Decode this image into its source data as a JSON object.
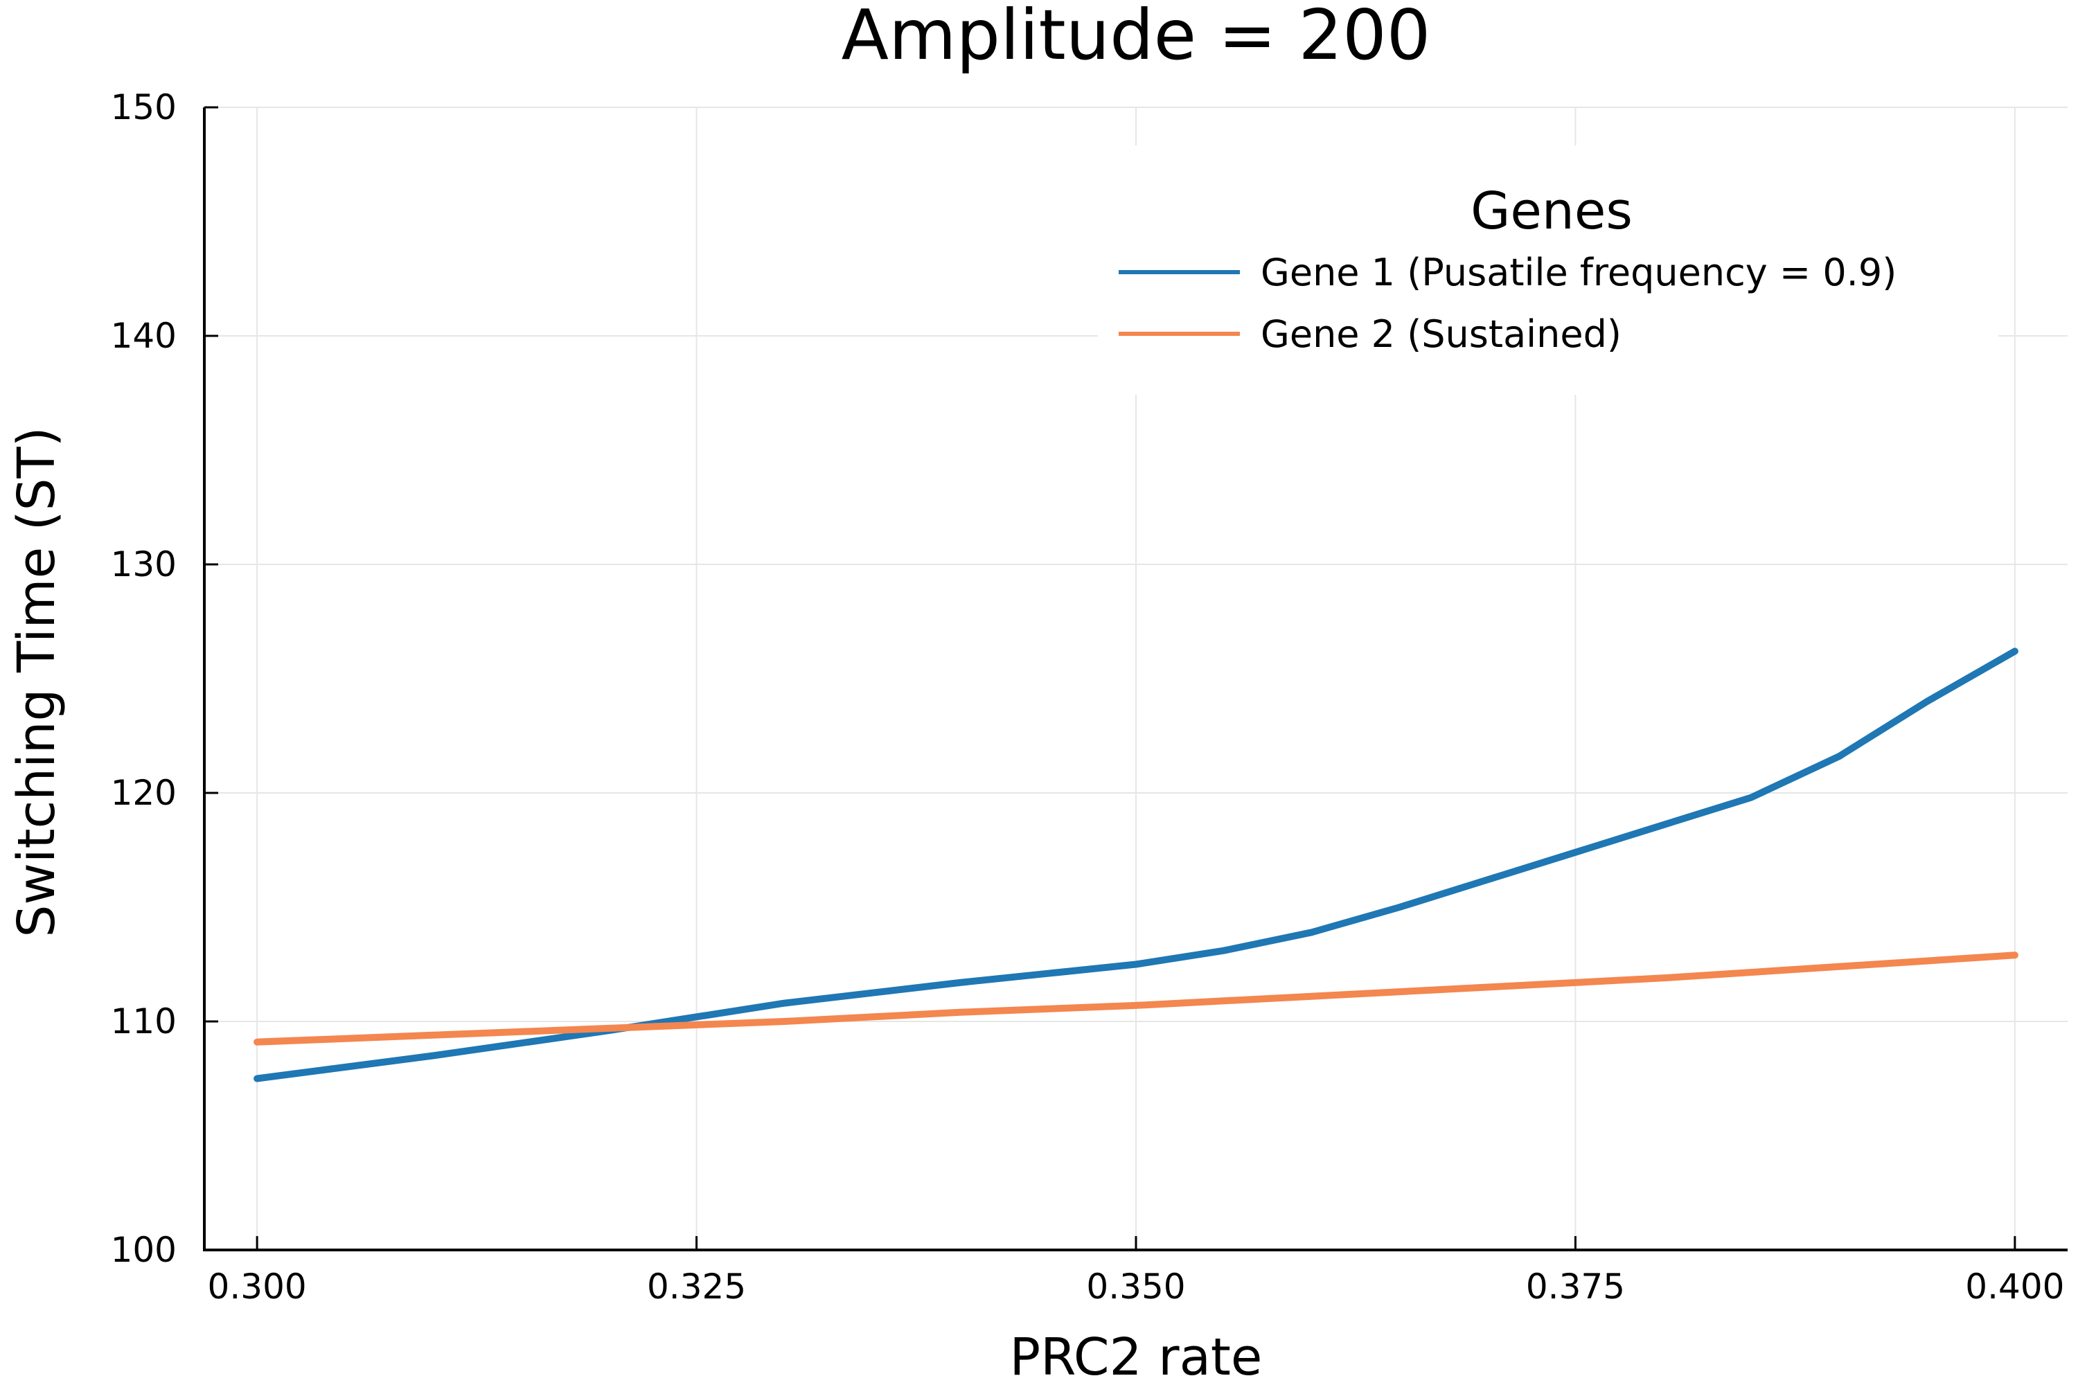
{
  "chart_data": {
    "type": "line",
    "title": "Amplitude = 200",
    "xlabel": "PRC2 rate",
    "ylabel": "Switching Time (ST)",
    "xlim": [
      0.297,
      0.403
    ],
    "ylim": [
      100,
      150
    ],
    "xticks": [
      0.3,
      0.325,
      0.35,
      0.375,
      0.4
    ],
    "xtick_labels": [
      "0.300",
      "0.325",
      "0.350",
      "0.375",
      "0.400"
    ],
    "yticks": [
      100,
      110,
      120,
      130,
      140,
      150
    ],
    "ytick_labels": [
      "100",
      "110",
      "120",
      "130",
      "140",
      "150"
    ],
    "grid": true,
    "legend": {
      "title": "Genes",
      "position": "top-right"
    },
    "series": [
      {
        "name": "Gene 1 (Pusatile frequency = 0.9)",
        "color": "#1f77b4",
        "x": [
          0.3,
          0.31,
          0.32,
          0.33,
          0.34,
          0.345,
          0.35,
          0.355,
          0.36,
          0.365,
          0.37,
          0.375,
          0.38,
          0.385,
          0.39,
          0.395,
          0.4
        ],
        "y": [
          107.5,
          108.5,
          109.6,
          110.8,
          111.7,
          112.1,
          112.5,
          113.1,
          113.9,
          115.0,
          116.2,
          117.4,
          118.6,
          119.8,
          121.6,
          124.0,
          126.2
        ]
      },
      {
        "name": "Gene 2 (Sustained)",
        "color": "#f4864f",
        "x": [
          0.3,
          0.31,
          0.32,
          0.33,
          0.34,
          0.35,
          0.36,
          0.37,
          0.38,
          0.39,
          0.4
        ],
        "y": [
          109.1,
          109.4,
          109.7,
          110.0,
          110.4,
          110.7,
          111.1,
          111.5,
          111.9,
          112.4,
          112.9
        ]
      }
    ]
  }
}
